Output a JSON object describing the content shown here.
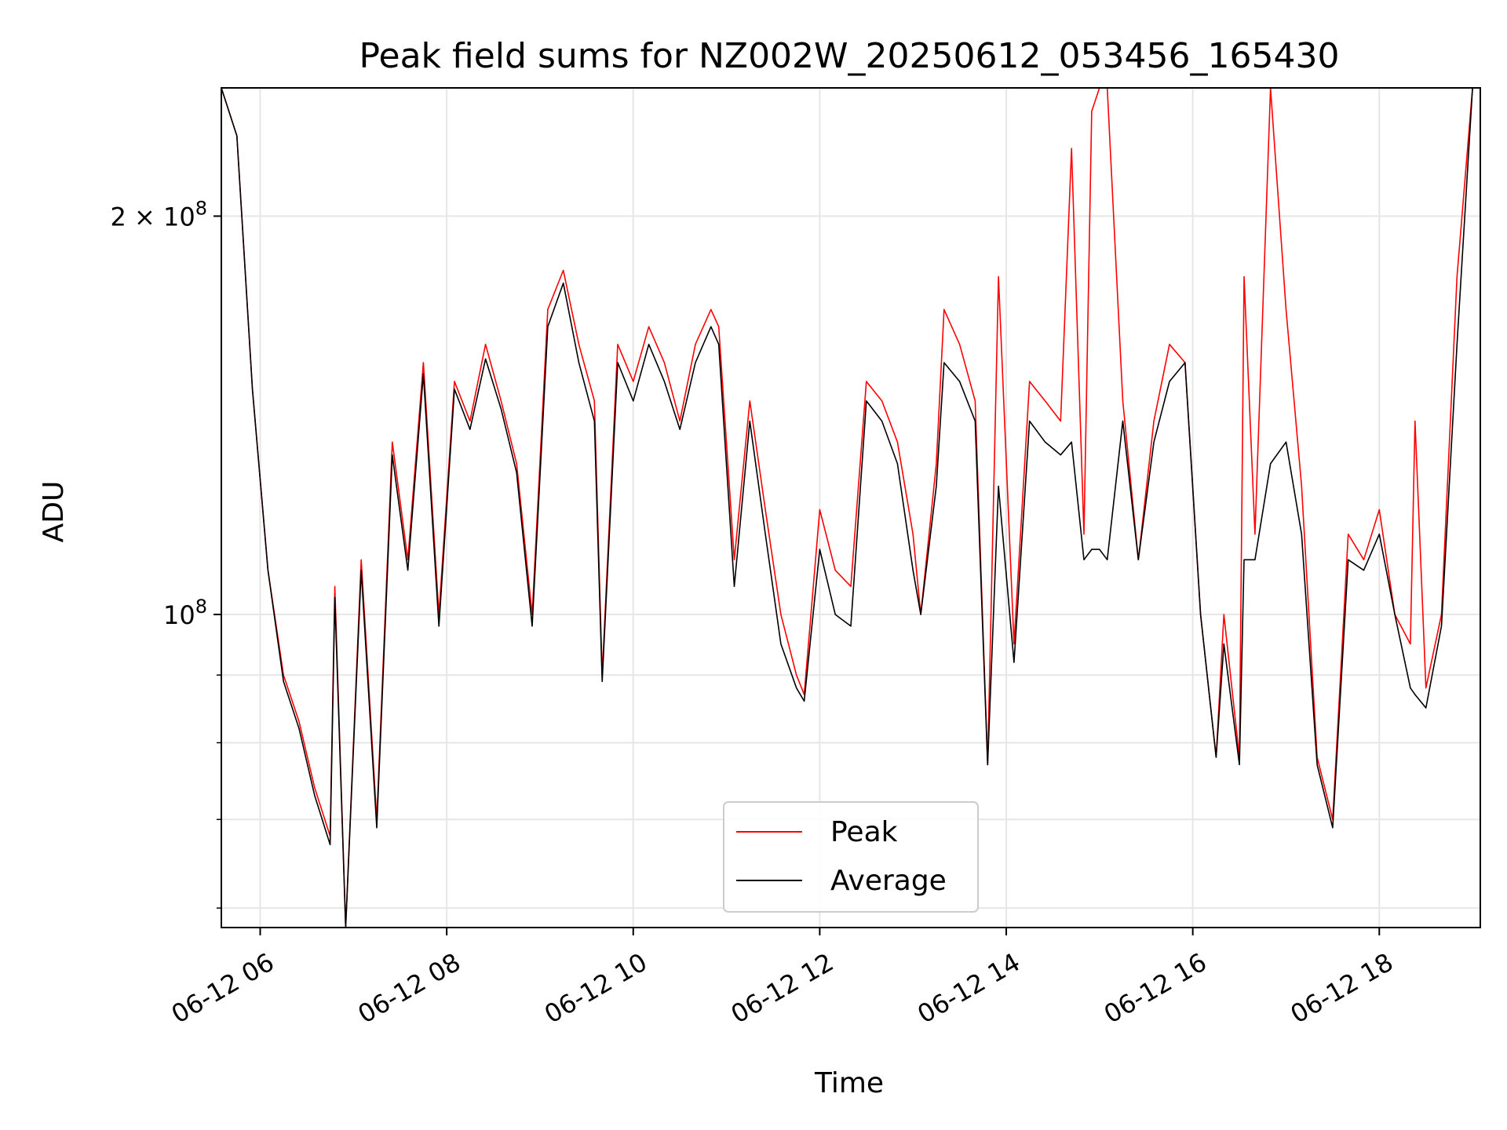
{
  "chart_data": {
    "type": "line",
    "title": "Peak field sums for NZ002W_20250612_053456_165430",
    "xlabel": "Time",
    "ylabel": "ADU",
    "y_scale": "log",
    "ylim": [
      58000000,
      250000000
    ],
    "xlim": [
      "2025-06-12 05:35",
      "2025-06-12 19:05"
    ],
    "grid": true,
    "legend_position": "lower-center",
    "x_ticks": [
      "06-12 06",
      "06-12 08",
      "06-12 10",
      "06-12 12",
      "06-12 14",
      "06-12 16",
      "06-12 18"
    ],
    "y_tick_labels": [
      {
        "value": 100000000,
        "base": "10",
        "exp": "8",
        "prefix": ""
      },
      {
        "value": 200000000,
        "base": "10",
        "exp": "8",
        "prefix": "2 × "
      }
    ],
    "y_minor_ticks": [
      60000000,
      70000000,
      80000000,
      90000000
    ],
    "series": [
      {
        "name": "Peak",
        "color": "#ff0000",
        "x": [
          "2025-06-12 05:35",
          "2025-06-12 05:45",
          "2025-06-12 05:55",
          "2025-06-12 06:05",
          "2025-06-12 06:15",
          "2025-06-12 06:25",
          "2025-06-12 06:35",
          "2025-06-12 06:45",
          "2025-06-12 06:48",
          "2025-06-12 06:55",
          "2025-06-12 07:05",
          "2025-06-12 07:15",
          "2025-06-12 07:25",
          "2025-06-12 07:35",
          "2025-06-12 07:45",
          "2025-06-12 07:55",
          "2025-06-12 08:05",
          "2025-06-12 08:15",
          "2025-06-12 08:25",
          "2025-06-12 08:35",
          "2025-06-12 08:45",
          "2025-06-12 08:55",
          "2025-06-12 09:05",
          "2025-06-12 09:15",
          "2025-06-12 09:25",
          "2025-06-12 09:35",
          "2025-06-12 09:40",
          "2025-06-12 09:50",
          "2025-06-12 10:00",
          "2025-06-12 10:10",
          "2025-06-12 10:20",
          "2025-06-12 10:30",
          "2025-06-12 10:40",
          "2025-06-12 10:50",
          "2025-06-12 10:55",
          "2025-06-12 11:05",
          "2025-06-12 11:15",
          "2025-06-12 11:25",
          "2025-06-12 11:35",
          "2025-06-12 11:45",
          "2025-06-12 11:50",
          "2025-06-12 12:00",
          "2025-06-12 12:10",
          "2025-06-12 12:20",
          "2025-06-12 12:30",
          "2025-06-12 12:40",
          "2025-06-12 12:50",
          "2025-06-12 13:00",
          "2025-06-12 13:05",
          "2025-06-12 13:15",
          "2025-06-12 13:20",
          "2025-06-12 13:30",
          "2025-06-12 13:40",
          "2025-06-12 13:48",
          "2025-06-12 13:55",
          "2025-06-12 14:05",
          "2025-06-12 14:15",
          "2025-06-12 14:25",
          "2025-06-12 14:35",
          "2025-06-12 14:42",
          "2025-06-12 14:50",
          "2025-06-12 14:55",
          "2025-06-12 15:00",
          "2025-06-12 15:05",
          "2025-06-12 15:15",
          "2025-06-12 15:25",
          "2025-06-12 15:35",
          "2025-06-12 15:45",
          "2025-06-12 15:55",
          "2025-06-12 16:05",
          "2025-06-12 16:15",
          "2025-06-12 16:20",
          "2025-06-12 16:30",
          "2025-06-12 16:33",
          "2025-06-12 16:40",
          "2025-06-12 16:50",
          "2025-06-12 17:00",
          "2025-06-12 17:10",
          "2025-06-12 17:20",
          "2025-06-12 17:30",
          "2025-06-12 17:40",
          "2025-06-12 17:50",
          "2025-06-12 18:00",
          "2025-06-12 18:10",
          "2025-06-12 18:20",
          "2025-06-12 18:23",
          "2025-06-12 18:30",
          "2025-06-12 18:40",
          "2025-06-12 18:50",
          "2025-06-12 19:00"
        ],
        "y": [
          250000000,
          230000000,
          148000000,
          108000000,
          90000000,
          83000000,
          74000000,
          68000000,
          105000000,
          58000000,
          110000000,
          70000000,
          135000000,
          110000000,
          155000000,
          100000000,
          150000000,
          140000000,
          160000000,
          145000000,
          130000000,
          100000000,
          170000000,
          182000000,
          160000000,
          145000000,
          90000000,
          160000000,
          150000000,
          165000000,
          155000000,
          140000000,
          160000000,
          170000000,
          165000000,
          110000000,
          145000000,
          120000000,
          100000000,
          90000000,
          87000000,
          120000000,
          108000000,
          105000000,
          150000000,
          145000000,
          135000000,
          115000000,
          100000000,
          130000000,
          170000000,
          160000000,
          145000000,
          77000000,
          180000000,
          95000000,
          150000000,
          145000000,
          140000000,
          225000000,
          115000000,
          240000000,
          250000000,
          250000000,
          145000000,
          110000000,
          140000000,
          160000000,
          155000000,
          100000000,
          78000000,
          100000000,
          78000000,
          180000000,
          115000000,
          250000000,
          170000000,
          125000000,
          78000000,
          70000000,
          115000000,
          110000000,
          120000000,
          100000000,
          95000000,
          140000000,
          88000000,
          100000000,
          180000000,
          250000000
        ]
      },
      {
        "name": "Average",
        "color": "#000000",
        "x": [
          "2025-06-12 05:35",
          "2025-06-12 05:45",
          "2025-06-12 05:55",
          "2025-06-12 06:05",
          "2025-06-12 06:15",
          "2025-06-12 06:25",
          "2025-06-12 06:35",
          "2025-06-12 06:45",
          "2025-06-12 06:48",
          "2025-06-12 06:55",
          "2025-06-12 07:05",
          "2025-06-12 07:15",
          "2025-06-12 07:25",
          "2025-06-12 07:35",
          "2025-06-12 07:45",
          "2025-06-12 07:55",
          "2025-06-12 08:05",
          "2025-06-12 08:15",
          "2025-06-12 08:25",
          "2025-06-12 08:35",
          "2025-06-12 08:45",
          "2025-06-12 08:55",
          "2025-06-12 09:05",
          "2025-06-12 09:15",
          "2025-06-12 09:25",
          "2025-06-12 09:35",
          "2025-06-12 09:40",
          "2025-06-12 09:50",
          "2025-06-12 10:00",
          "2025-06-12 10:10",
          "2025-06-12 10:20",
          "2025-06-12 10:30",
          "2025-06-12 10:40",
          "2025-06-12 10:50",
          "2025-06-12 10:55",
          "2025-06-12 11:05",
          "2025-06-12 11:15",
          "2025-06-12 11:25",
          "2025-06-12 11:35",
          "2025-06-12 11:45",
          "2025-06-12 11:50",
          "2025-06-12 12:00",
          "2025-06-12 12:10",
          "2025-06-12 12:20",
          "2025-06-12 12:30",
          "2025-06-12 12:40",
          "2025-06-12 12:50",
          "2025-06-12 13:00",
          "2025-06-12 13:05",
          "2025-06-12 13:15",
          "2025-06-12 13:20",
          "2025-06-12 13:30",
          "2025-06-12 13:40",
          "2025-06-12 13:48",
          "2025-06-12 13:55",
          "2025-06-12 14:05",
          "2025-06-12 14:15",
          "2025-06-12 14:25",
          "2025-06-12 14:35",
          "2025-06-12 14:42",
          "2025-06-12 14:50",
          "2025-06-12 14:55",
          "2025-06-12 15:00",
          "2025-06-12 15:05",
          "2025-06-12 15:15",
          "2025-06-12 15:25",
          "2025-06-12 15:35",
          "2025-06-12 15:45",
          "2025-06-12 15:55",
          "2025-06-12 16:05",
          "2025-06-12 16:15",
          "2025-06-12 16:20",
          "2025-06-12 16:30",
          "2025-06-12 16:33",
          "2025-06-12 16:40",
          "2025-06-12 16:50",
          "2025-06-12 17:00",
          "2025-06-12 17:10",
          "2025-06-12 17:20",
          "2025-06-12 17:30",
          "2025-06-12 17:40",
          "2025-06-12 17:50",
          "2025-06-12 18:00",
          "2025-06-12 18:10",
          "2025-06-12 18:20",
          "2025-06-12 18:23",
          "2025-06-12 18:30",
          "2025-06-12 18:40",
          "2025-06-12 18:50",
          "2025-06-12 19:00"
        ],
        "y": [
          250000000,
          230000000,
          148000000,
          108000000,
          89000000,
          82000000,
          73000000,
          67000000,
          103000000,
          58000000,
          108000000,
          69000000,
          132000000,
          108000000,
          152000000,
          98000000,
          148000000,
          138000000,
          156000000,
          143000000,
          128000000,
          98000000,
          165000000,
          178000000,
          155000000,
          140000000,
          89000000,
          155000000,
          145000000,
          160000000,
          150000000,
          138000000,
          155000000,
          165000000,
          160000000,
          105000000,
          140000000,
          115000000,
          95000000,
          88000000,
          86000000,
          112000000,
          100000000,
          98000000,
          145000000,
          140000000,
          130000000,
          108000000,
          100000000,
          125000000,
          155000000,
          150000000,
          140000000,
          77000000,
          125000000,
          92000000,
          140000000,
          135000000,
          132000000,
          135000000,
          110000000,
          112000000,
          112000000,
          110000000,
          140000000,
          110000000,
          135000000,
          150000000,
          155000000,
          100000000,
          78000000,
          95000000,
          77000000,
          110000000,
          110000000,
          130000000,
          135000000,
          115000000,
          77000000,
          69000000,
          110000000,
          108000000,
          115000000,
          100000000,
          88000000,
          87000000,
          85000000,
          98000000,
          160000000,
          250000000
        ]
      }
    ]
  }
}
